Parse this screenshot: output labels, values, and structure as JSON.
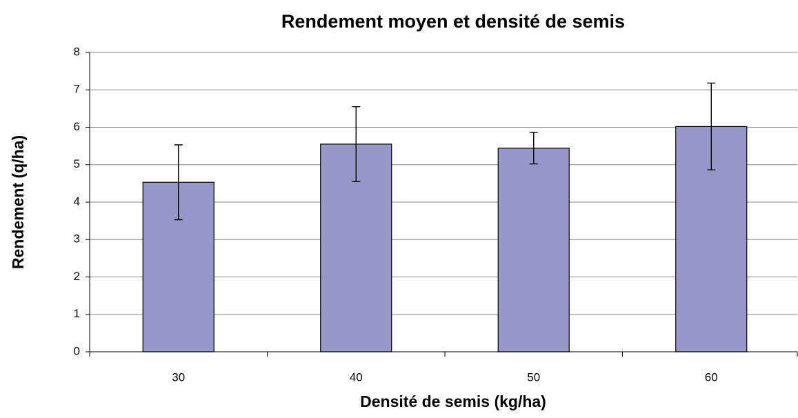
{
  "chart_data": {
    "type": "bar",
    "title": "Rendement moyen et densité de semis",
    "x_label": "Densité de semis (kg/ha)",
    "y_label": "Rendement (q/ha)",
    "categories": [
      "30",
      "40",
      "50",
      "60"
    ],
    "values": [
      4.53,
      5.55,
      5.44,
      6.02
    ],
    "errors": [
      1.0,
      1.0,
      0.42,
      1.16
    ],
    "color": "#9797c9",
    "ylim": [
      0,
      8
    ],
    "yticks": [
      0,
      1,
      2,
      3,
      4,
      5,
      6,
      7,
      8
    ],
    "grid": true
  }
}
